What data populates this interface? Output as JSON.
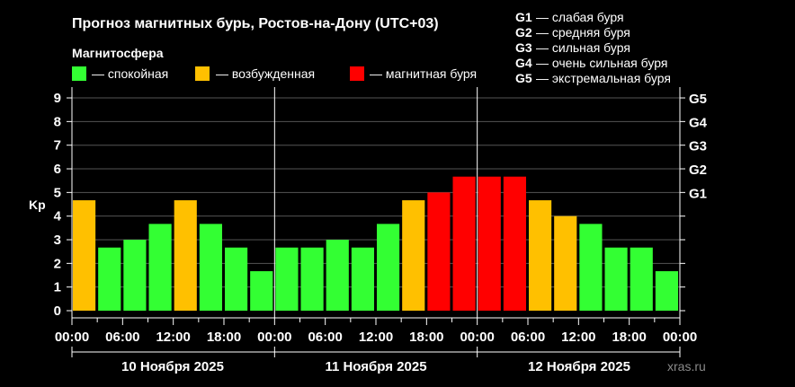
{
  "header": {
    "title": "Прогноз магнитных бурь, Ростов-на-Дону (UTC+03)",
    "subtitle": "Магнитосфера",
    "legend": [
      {
        "label": "— спокойная",
        "color": "#33ff33"
      },
      {
        "label": "— возбужденная",
        "color": "#ffc000"
      },
      {
        "label": "— магнитная буря",
        "color": "#ff0000"
      }
    ]
  },
  "storm_scale": [
    {
      "code": "G1",
      "desc": "— слабая буря",
      "level": 5
    },
    {
      "code": "G2",
      "desc": "— средняя буря",
      "level": 6
    },
    {
      "code": "G3",
      "desc": "— сильная буря",
      "level": 7
    },
    {
      "code": "G4",
      "desc": "— очень сильная буря",
      "level": 8
    },
    {
      "code": "G5",
      "desc": "— экстремальная буря",
      "level": 9
    }
  ],
  "watermark": "xras.ru",
  "colors": {
    "quiet": "#33ff33",
    "active": "#ffc000",
    "storm": "#ff0000",
    "grid": "#555555",
    "axis": "#ffffff"
  },
  "chart_data": {
    "type": "bar",
    "ylabel": "Kp",
    "ylim": [
      0,
      9
    ],
    "yticks": [
      0,
      1,
      2,
      3,
      4,
      5,
      6,
      7,
      8,
      9
    ],
    "xtick_labels": [
      "00:00",
      "06:00",
      "12:00",
      "18:00",
      "00:00",
      "06:00",
      "12:00",
      "18:00",
      "00:00",
      "06:00",
      "12:00",
      "18:00",
      "00:00"
    ],
    "days": [
      "10 Ноября 2025",
      "11 Ноября 2025",
      "12 Ноября 2025"
    ],
    "bar_interval_hours": 3,
    "values": [
      4.67,
      2.67,
      3.0,
      3.67,
      4.67,
      3.67,
      2.67,
      1.67,
      2.67,
      2.67,
      3.0,
      2.67,
      3.67,
      4.67,
      5.0,
      5.67,
      5.67,
      5.67,
      4.67,
      4.0,
      3.67,
      2.67,
      2.67,
      1.67
    ],
    "levels": [
      "active",
      "quiet",
      "quiet",
      "quiet",
      "active",
      "quiet",
      "quiet",
      "quiet",
      "quiet",
      "quiet",
      "quiet",
      "quiet",
      "quiet",
      "active",
      "storm",
      "storm",
      "storm",
      "storm",
      "active",
      "active",
      "quiet",
      "quiet",
      "quiet",
      "quiet"
    ],
    "right_axis_labels": [
      "G1",
      "G2",
      "G3",
      "G4",
      "G5"
    ],
    "grid": true
  }
}
